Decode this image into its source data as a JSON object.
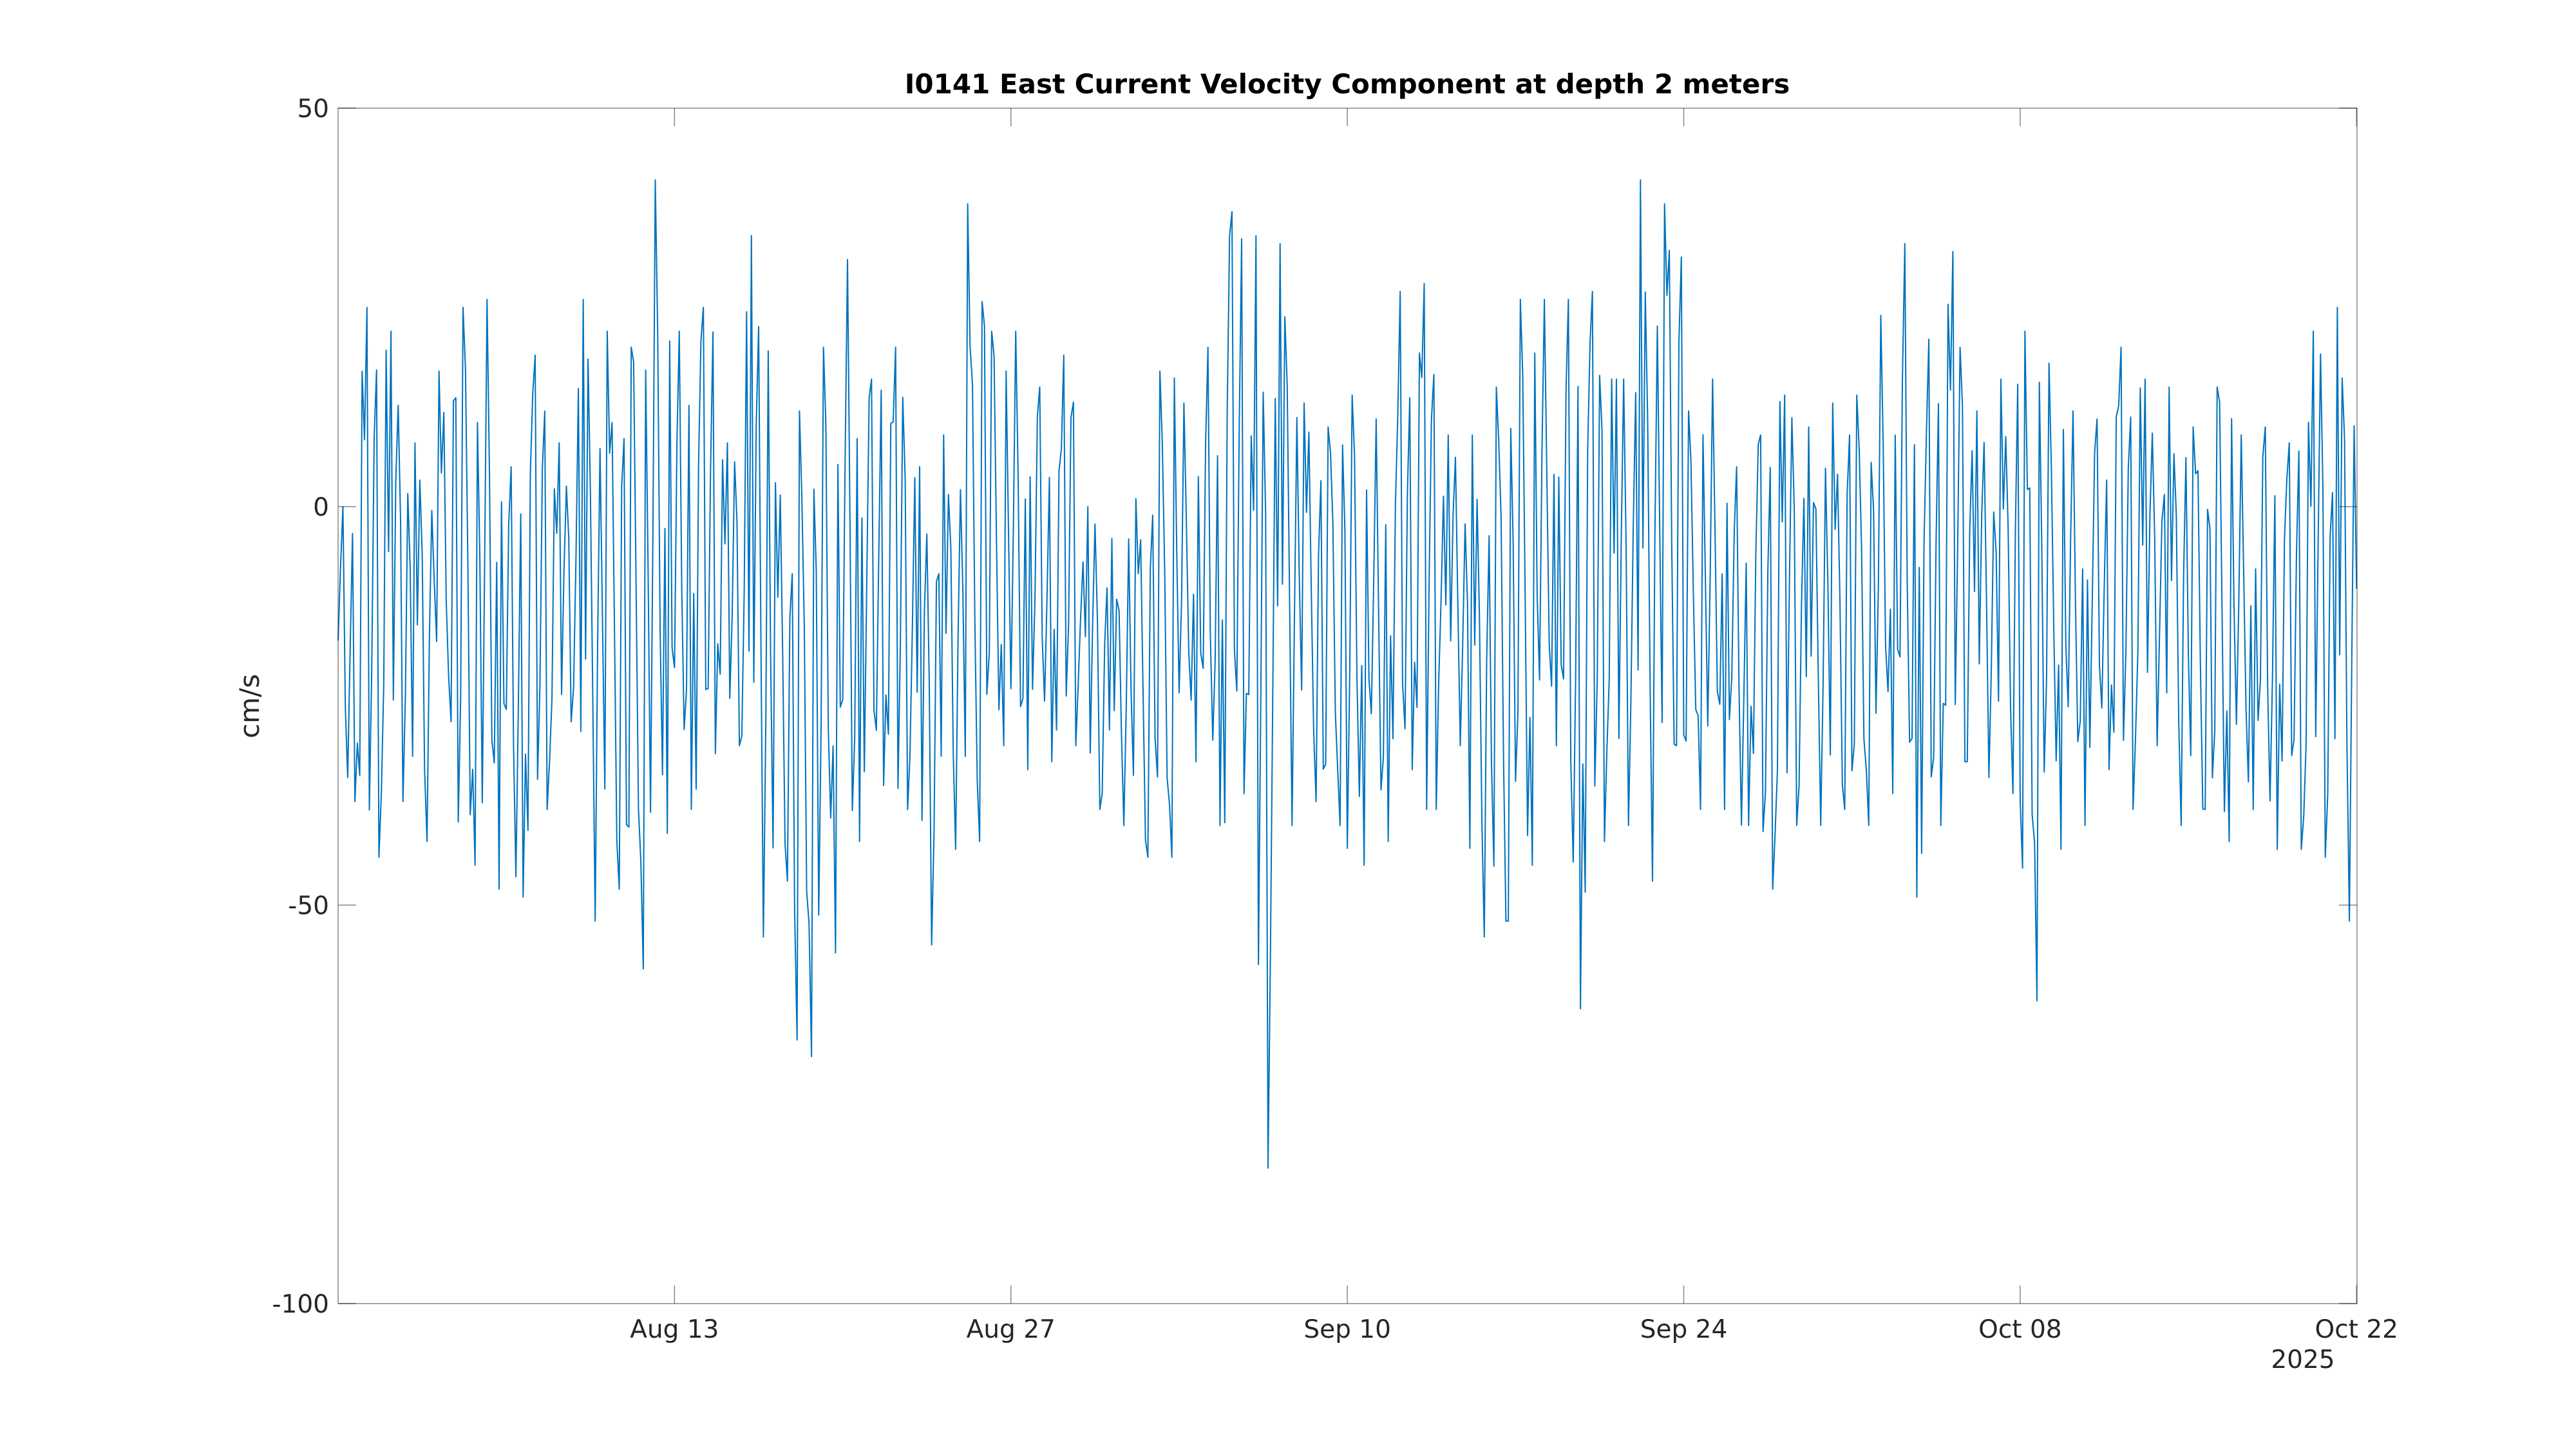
{
  "chart_data": {
    "type": "line",
    "title": "I0141 East Current Velocity Component at depth 2 meters",
    "xlabel": "",
    "ylabel": "cm/s",
    "x_range": [
      "2025-07-30",
      "2025-10-22"
    ],
    "ylim": [
      -100,
      50
    ],
    "yticks": [
      -100,
      -50,
      0,
      50
    ],
    "ytick_labels": [
      "-100",
      "-50",
      "0",
      "50"
    ],
    "xticks": [
      "2025-08-13",
      "2025-08-27",
      "2025-09-10",
      "2025-09-24",
      "2025-10-08",
      "2025-10-22"
    ],
    "xtick_labels": [
      "Aug 13",
      "Aug 27",
      "Sep 10",
      "Sep 24",
      "Oct 08",
      "Oct 22"
    ],
    "x_secondary_label": "2025",
    "grid": false,
    "line_color": "#0072BD",
    "series": [
      {
        "x": [
          "2025-07-30",
          "2025-07-31",
          "2025-08-01",
          "2025-08-02",
          "2025-08-03",
          "2025-08-04",
          "2025-08-05",
          "2025-08-06",
          "2025-08-07",
          "2025-08-08",
          "2025-08-09",
          "2025-08-10",
          "2025-08-11",
          "2025-08-12",
          "2025-08-13",
          "2025-08-14",
          "2025-08-15",
          "2025-08-16",
          "2025-08-17",
          "2025-08-18",
          "2025-08-19",
          "2025-08-20",
          "2025-08-21",
          "2025-08-22",
          "2025-08-23",
          "2025-08-24",
          "2025-08-25",
          "2025-08-26",
          "2025-08-27",
          "2025-08-28",
          "2025-08-29",
          "2025-08-30",
          "2025-08-31",
          "2025-09-01",
          "2025-09-02",
          "2025-09-03",
          "2025-09-04",
          "2025-09-05",
          "2025-09-06",
          "2025-09-07",
          "2025-09-08",
          "2025-09-09",
          "2025-09-10",
          "2025-09-11",
          "2025-09-12",
          "2025-09-13",
          "2025-09-14",
          "2025-09-15",
          "2025-09-16",
          "2025-09-17",
          "2025-09-18",
          "2025-09-19",
          "2025-09-20",
          "2025-09-21",
          "2025-09-22",
          "2025-09-23",
          "2025-09-24",
          "2025-09-25",
          "2025-09-26",
          "2025-09-27",
          "2025-09-28",
          "2025-09-29",
          "2025-09-30",
          "2025-10-01",
          "2025-10-02",
          "2025-10-03",
          "2025-10-04",
          "2025-10-05",
          "2025-10-06",
          "2025-10-07",
          "2025-10-08",
          "2025-10-09",
          "2025-10-10",
          "2025-10-11",
          "2025-10-12",
          "2025-10-13",
          "2025-10-14",
          "2025-10-15",
          "2025-10-16",
          "2025-10-17",
          "2025-10-18",
          "2025-10-19",
          "2025-10-20",
          "2025-10-21",
          "2025-10-22"
        ],
        "min": [
          -37,
          -44,
          -37,
          -42,
          -27,
          -45,
          -48,
          -49,
          -38,
          -27,
          -52,
          -48,
          -58,
          -41,
          -38,
          -31,
          -30,
          -54,
          -47,
          -69,
          -56,
          -42,
          -35,
          -38,
          -55,
          -43,
          -42,
          -30,
          -33,
          -32,
          -30,
          -38,
          -40,
          -44,
          -44,
          -32,
          -40,
          -36,
          -83,
          -40,
          -37,
          -40,
          -45,
          -42,
          -33,
          -38,
          -30,
          -54,
          -52,
          -45,
          -30,
          -63,
          -42,
          -40,
          -47,
          -30,
          -38,
          -38,
          -40,
          -48,
          -40,
          -40,
          -38,
          -40,
          -36,
          -49,
          -40,
          -32,
          -34,
          -36,
          -62,
          -43,
          -40,
          -33,
          -38,
          -30,
          -40,
          -38,
          -42,
          -38,
          -43,
          -43,
          -44,
          -52,
          -35
        ],
        "max": [
          0,
          25,
          22,
          8,
          17,
          25,
          26,
          5,
          19,
          8,
          26,
          22,
          20,
          41,
          22,
          25,
          8,
          34,
          3,
          12,
          20,
          31,
          16,
          20,
          5,
          9,
          38,
          22,
          22,
          15,
          19,
          0,
          -4,
          1,
          17,
          13,
          20,
          37,
          34,
          33,
          13,
          10,
          14,
          11,
          27,
          28,
          9,
          9,
          15,
          26,
          26,
          26,
          27,
          16,
          41,
          38,
          12,
          16,
          5,
          9,
          14,
          10,
          13,
          14,
          24,
          33,
          21,
          32,
          12,
          16,
          22,
          18,
          12,
          11,
          20,
          16,
          15,
          10,
          15,
          9,
          10,
          8,
          22,
          25,
          17
        ]
      }
    ]
  }
}
